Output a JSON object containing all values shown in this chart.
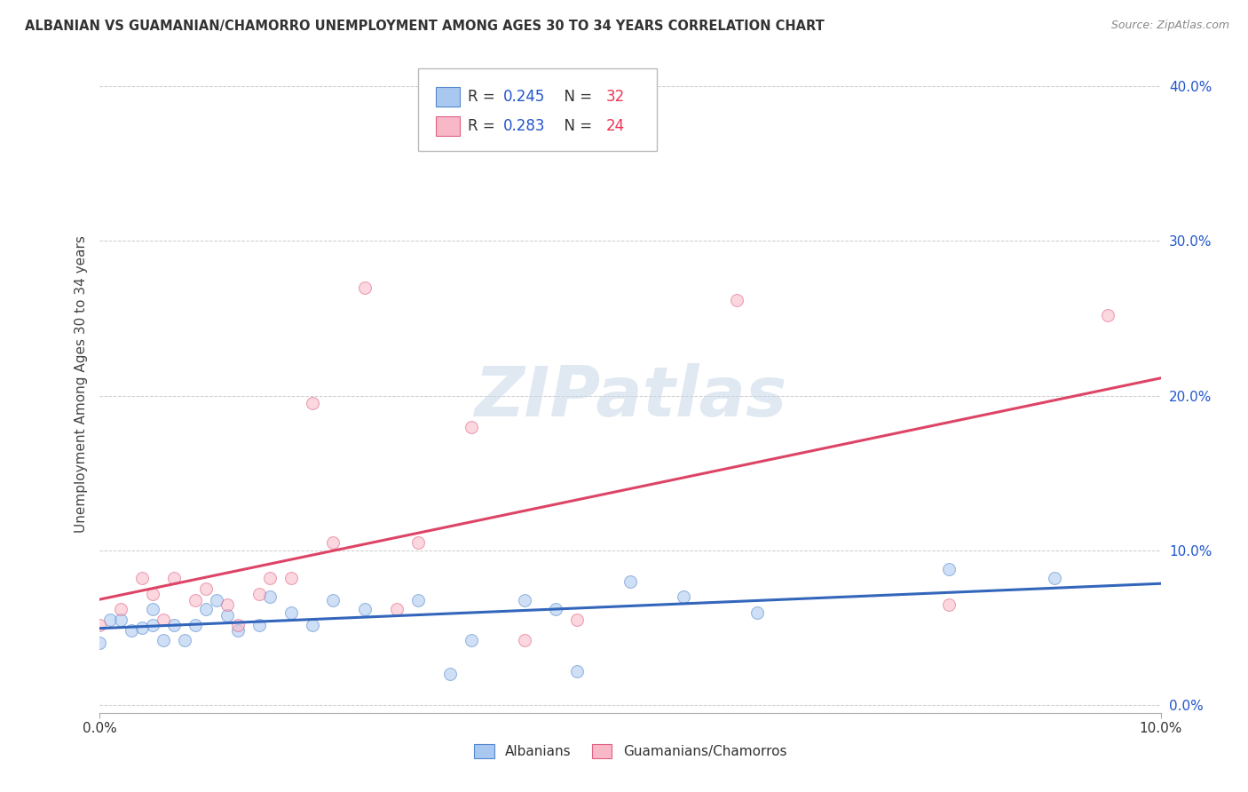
{
  "title": "ALBANIAN VS GUAMANIAN/CHAMORRO UNEMPLOYMENT AMONG AGES 30 TO 34 YEARS CORRELATION CHART",
  "source": "Source: ZipAtlas.com",
  "ylabel_label": "Unemployment Among Ages 30 to 34 years",
  "xlim": [
    0,
    0.1
  ],
  "ylim": [
    -0.005,
    0.42
  ],
  "yticks": [
    0.0,
    0.1,
    0.2,
    0.3,
    0.4
  ],
  "ytick_labels": [
    "0.0%",
    "10.0%",
    "20.0%",
    "30.0%",
    "40.0%"
  ],
  "xticks": [
    0.0,
    0.1
  ],
  "xtick_labels": [
    "0.0%",
    "10.0%"
  ],
  "legend_labels": [
    "Albanians",
    "Guamanians/Chamorros"
  ],
  "r_alb": "0.245",
  "n_alb": "32",
  "r_gua": "0.283",
  "n_gua": "24",
  "blue_fill": "#A8C8F0",
  "pink_fill": "#F8B8C8",
  "blue_edge": "#5588CC",
  "pink_edge": "#E06080",
  "blue_line": "#3366BB",
  "pink_line": "#DD4466",
  "watermark_text": "ZIPatlas",
  "watermark_color": "#C8D8E8",
  "watermark_alpha": 0.55,
  "background_color": "#FFFFFF",
  "grid_color": "#CCCCCC",
  "marker_size": 100,
  "marker_alpha": 0.55,
  "albanians_x": [
    0.0,
    0.001,
    0.002,
    0.003,
    0.004,
    0.005,
    0.005,
    0.006,
    0.007,
    0.008,
    0.009,
    0.01,
    0.011,
    0.012,
    0.013,
    0.015,
    0.016,
    0.018,
    0.02,
    0.022,
    0.025,
    0.03,
    0.033,
    0.035,
    0.04,
    0.043,
    0.045,
    0.05,
    0.055,
    0.062,
    0.08,
    0.09
  ],
  "albanians_y": [
    0.04,
    0.055,
    0.055,
    0.048,
    0.05,
    0.062,
    0.052,
    0.042,
    0.052,
    0.042,
    0.052,
    0.062,
    0.068,
    0.058,
    0.048,
    0.052,
    0.07,
    0.06,
    0.052,
    0.068,
    0.062,
    0.068,
    0.02,
    0.042,
    0.068,
    0.062,
    0.022,
    0.08,
    0.07,
    0.06,
    0.088,
    0.082
  ],
  "guamanian_x": [
    0.0,
    0.002,
    0.004,
    0.005,
    0.006,
    0.007,
    0.009,
    0.01,
    0.012,
    0.013,
    0.015,
    0.016,
    0.018,
    0.02,
    0.022,
    0.025,
    0.028,
    0.03,
    0.035,
    0.04,
    0.045,
    0.06,
    0.08,
    0.095
  ],
  "guamanian_y": [
    0.052,
    0.062,
    0.082,
    0.072,
    0.055,
    0.082,
    0.068,
    0.075,
    0.065,
    0.052,
    0.072,
    0.082,
    0.082,
    0.195,
    0.105,
    0.27,
    0.062,
    0.105,
    0.18,
    0.042,
    0.055,
    0.262,
    0.065,
    0.252
  ]
}
